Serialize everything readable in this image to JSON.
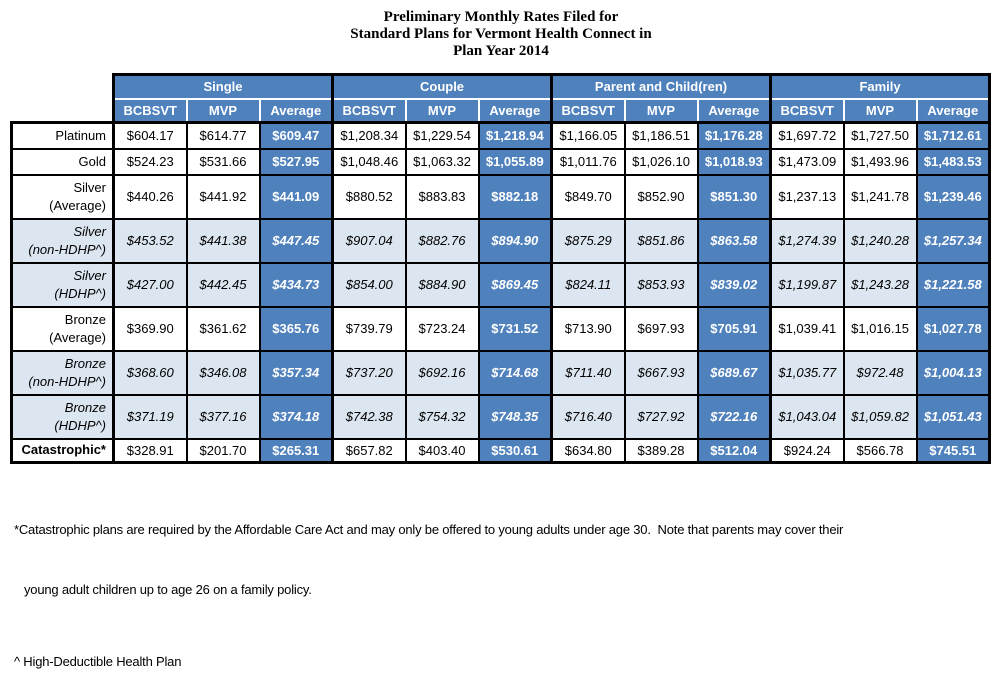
{
  "title": {
    "line1": "Preliminary Monthly Rates Filed for",
    "line2": "Standard Plans for Vermont Health Connect in",
    "line3": "Plan Year 2014"
  },
  "colors": {
    "header_blue": "#4f81bd",
    "shaded_row_blue": "#dce6f1",
    "border": "#000000",
    "header_text": "#ffffff",
    "body_text": "#000000"
  },
  "table": {
    "groups": [
      {
        "label": "Single"
      },
      {
        "label": "Couple"
      },
      {
        "label": "Parent and Child(ren)"
      },
      {
        "label": "Family"
      }
    ],
    "subheaders": [
      "BCBSVT",
      "MVP",
      "Average"
    ],
    "rows": [
      {
        "label": "Platinum",
        "italic": false,
        "shaded": false,
        "bold_label": false,
        "values": [
          "$604.17",
          "$614.77",
          "$609.47",
          "$1,208.34",
          "$1,229.54",
          "$1,218.94",
          "$1,166.05",
          "$1,186.51",
          "$1,176.28",
          "$1,697.72",
          "$1,727.50",
          "$1,712.61"
        ]
      },
      {
        "label": "Gold",
        "italic": false,
        "shaded": false,
        "bold_label": false,
        "values": [
          "$524.23",
          "$531.66",
          "$527.95",
          "$1,048.46",
          "$1,063.32",
          "$1,055.89",
          "$1,011.76",
          "$1,026.10",
          "$1,018.93",
          "$1,473.09",
          "$1,493.96",
          "$1,483.53"
        ]
      },
      {
        "label": "Silver\n(Average)",
        "italic": false,
        "shaded": false,
        "bold_label": false,
        "values": [
          "$440.26",
          "$441.92",
          "$441.09",
          "$880.52",
          "$883.83",
          "$882.18",
          "$849.70",
          "$852.90",
          "$851.30",
          "$1,237.13",
          "$1,241.78",
          "$1,239.46"
        ]
      },
      {
        "label": "Silver\n(non-HDHP^)",
        "italic": true,
        "shaded": true,
        "bold_label": false,
        "values": [
          "$453.52",
          "$441.38",
          "$447.45",
          "$907.04",
          "$882.76",
          "$894.90",
          "$875.29",
          "$851.86",
          "$863.58",
          "$1,274.39",
          "$1,240.28",
          "$1,257.34"
        ]
      },
      {
        "label": "Silver\n(HDHP^)",
        "italic": true,
        "shaded": true,
        "bold_label": false,
        "values": [
          "$427.00",
          "$442.45",
          "$434.73",
          "$854.00",
          "$884.90",
          "$869.45",
          "$824.11",
          "$853.93",
          "$839.02",
          "$1,199.87",
          "$1,243.28",
          "$1,221.58"
        ]
      },
      {
        "label": "Bronze\n(Average)",
        "italic": false,
        "shaded": false,
        "bold_label": false,
        "values": [
          "$369.90",
          "$361.62",
          "$365.76",
          "$739.79",
          "$723.24",
          "$731.52",
          "$713.90",
          "$697.93",
          "$705.91",
          "$1,039.41",
          "$1,016.15",
          "$1,027.78"
        ]
      },
      {
        "label": "Bronze\n(non-HDHP^)",
        "italic": true,
        "shaded": true,
        "bold_label": false,
        "values": [
          "$368.60",
          "$346.08",
          "$357.34",
          "$737.20",
          "$692.16",
          "$714.68",
          "$711.40",
          "$667.93",
          "$689.67",
          "$1,035.77",
          "$972.48",
          "$1,004.13"
        ]
      },
      {
        "label": "Bronze\n(HDHP^)",
        "italic": true,
        "shaded": true,
        "bold_label": false,
        "values": [
          "$371.19",
          "$377.16",
          "$374.18",
          "$742.38",
          "$754.32",
          "$748.35",
          "$716.40",
          "$727.92",
          "$722.16",
          "$1,043.04",
          "$1,059.82",
          "$1,051.43"
        ]
      },
      {
        "label": "Catastrophic*",
        "italic": false,
        "shaded": false,
        "bold_label": true,
        "values": [
          "$328.91",
          "$201.70",
          "$265.31",
          "$657.82",
          "$403.40",
          "$530.61",
          "$634.80",
          "$389.28",
          "$512.04",
          "$924.24",
          "$566.78",
          "$745.51"
        ]
      }
    ]
  },
  "footnotes": {
    "catastrophic_line1": "*Catastrophic plans are required by the Affordable Care Act and may only be offered to young adults under age 30.  Note that parents may cover their",
    "catastrophic_line2": "young adult children up to age 26 on a family policy.",
    "hdhp": "^ High-Deductible Health Plan"
  }
}
